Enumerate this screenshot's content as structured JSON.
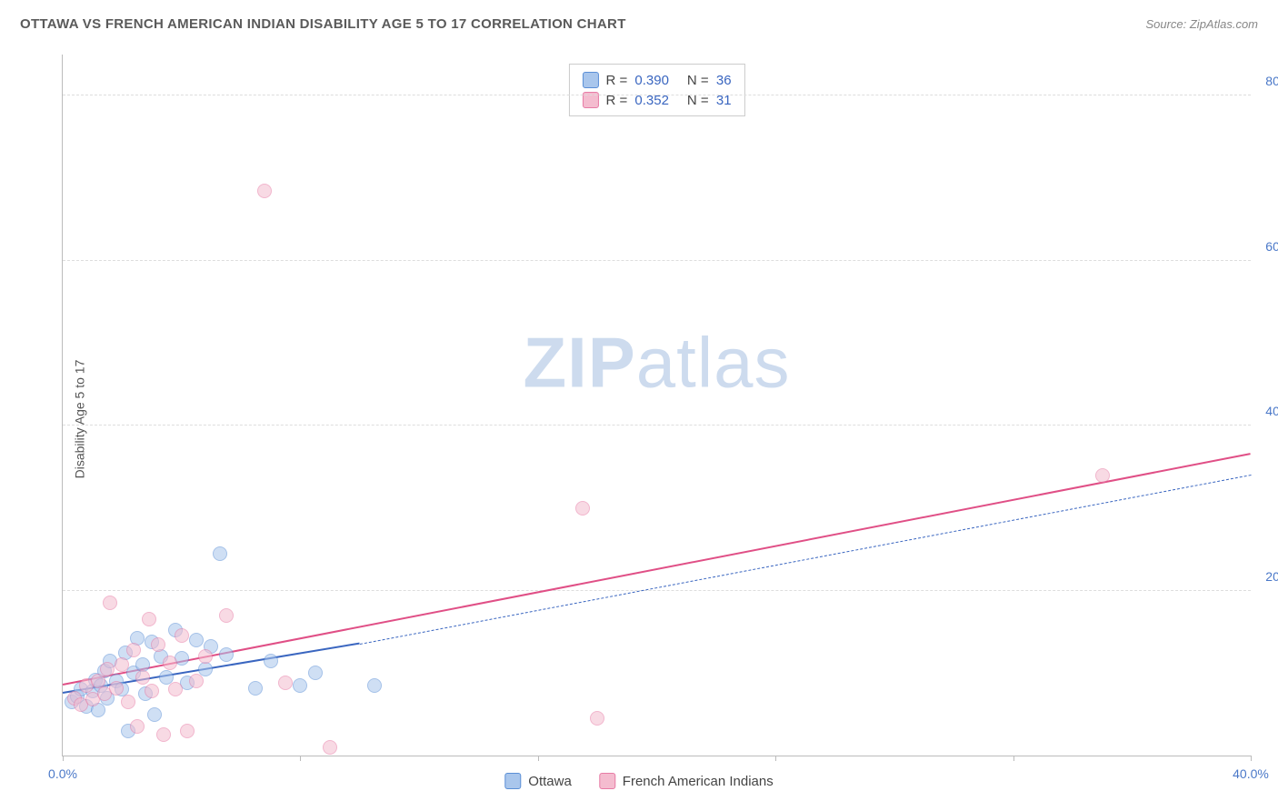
{
  "header": {
    "title": "OTTAWA VS FRENCH AMERICAN INDIAN DISABILITY AGE 5 TO 17 CORRELATION CHART",
    "source": "Source: ZipAtlas.com"
  },
  "chart": {
    "type": "scatter",
    "ylabel": "Disability Age 5 to 17",
    "watermark_a": "ZIP",
    "watermark_b": "atlas",
    "xlim": [
      0,
      40
    ],
    "ylim": [
      0,
      85
    ],
    "ytick_values": [
      20,
      40,
      60,
      80
    ],
    "ytick_labels": [
      "20.0%",
      "40.0%",
      "60.0%",
      "80.0%"
    ],
    "xtick_marks": [
      0,
      8,
      16,
      24,
      32,
      40
    ],
    "xtick_labels": [
      {
        "x": 0,
        "label": "0.0%"
      },
      {
        "x": 40,
        "label": "40.0%"
      }
    ],
    "background_color": "#ffffff",
    "grid_color": "#dddddd",
    "axis_color": "#bbbbbb",
    "tick_label_color": "#4a78c8",
    "point_radius": 8,
    "point_border_width": 1.5,
    "series": [
      {
        "name": "Ottawa",
        "fill": "#a9c6ec",
        "stroke": "#5b8fd6",
        "fill_opacity": 0.55,
        "R": "0.390",
        "N": "36",
        "trend": {
          "x1": 0,
          "y1": 7.5,
          "x2": 10,
          "y2": 13.5,
          "solid": true,
          "dash_ext_x2": 40,
          "dash_ext_y2": 34,
          "width": 2.2,
          "color": "#3a66c0"
        },
        "points": [
          [
            0.3,
            6.5
          ],
          [
            0.5,
            7.2
          ],
          [
            0.6,
            8.1
          ],
          [
            0.8,
            6.0
          ],
          [
            1.0,
            7.8
          ],
          [
            1.1,
            9.2
          ],
          [
            1.2,
            5.5
          ],
          [
            1.3,
            8.5
          ],
          [
            1.4,
            10.2
          ],
          [
            1.5,
            7.0
          ],
          [
            1.6,
            11.5
          ],
          [
            1.8,
            9.0
          ],
          [
            2.0,
            8.0
          ],
          [
            2.1,
            12.5
          ],
          [
            2.2,
            3.0
          ],
          [
            2.4,
            10.0
          ],
          [
            2.5,
            14.2
          ],
          [
            2.7,
            11.0
          ],
          [
            2.8,
            7.5
          ],
          [
            3.0,
            13.8
          ],
          [
            3.1,
            5.0
          ],
          [
            3.3,
            12.0
          ],
          [
            3.5,
            9.5
          ],
          [
            3.8,
            15.2
          ],
          [
            4.0,
            11.8
          ],
          [
            4.2,
            8.8
          ],
          [
            4.5,
            14.0
          ],
          [
            4.8,
            10.5
          ],
          [
            5.0,
            13.2
          ],
          [
            5.3,
            24.5
          ],
          [
            5.5,
            12.2
          ],
          [
            6.5,
            8.2
          ],
          [
            7.0,
            11.5
          ],
          [
            8.0,
            8.5
          ],
          [
            8.5,
            10.0
          ],
          [
            10.5,
            8.5
          ]
        ]
      },
      {
        "name": "French American Indians",
        "fill": "#f4bccf",
        "stroke": "#e77ba5",
        "fill_opacity": 0.55,
        "R": "0.352",
        "N": "31",
        "trend": {
          "x1": 0,
          "y1": 8.5,
          "x2": 40,
          "y2": 36.5,
          "solid": true,
          "width": 2.2,
          "color": "#e04f86"
        },
        "points": [
          [
            0.4,
            7.0
          ],
          [
            0.6,
            6.2
          ],
          [
            0.8,
            8.5
          ],
          [
            1.0,
            6.8
          ],
          [
            1.2,
            9.0
          ],
          [
            1.4,
            7.5
          ],
          [
            1.5,
            10.5
          ],
          [
            1.6,
            18.5
          ],
          [
            1.8,
            8.2
          ],
          [
            2.0,
            11.0
          ],
          [
            2.2,
            6.5
          ],
          [
            2.4,
            12.8
          ],
          [
            2.5,
            3.5
          ],
          [
            2.7,
            9.5
          ],
          [
            2.9,
            16.5
          ],
          [
            3.0,
            7.8
          ],
          [
            3.2,
            13.5
          ],
          [
            3.4,
            2.5
          ],
          [
            3.6,
            11.2
          ],
          [
            3.8,
            8.0
          ],
          [
            4.0,
            14.5
          ],
          [
            4.2,
            3.0
          ],
          [
            4.5,
            9.0
          ],
          [
            4.8,
            12.0
          ],
          [
            5.5,
            17.0
          ],
          [
            6.8,
            68.5
          ],
          [
            7.5,
            8.8
          ],
          [
            9.0,
            1.0
          ],
          [
            17.5,
            30.0
          ],
          [
            18.0,
            4.5
          ],
          [
            35.0,
            34.0
          ]
        ]
      }
    ],
    "legend_bottom": [
      {
        "swatch_fill": "#a9c6ec",
        "swatch_stroke": "#5b8fd6",
        "label": "Ottawa"
      },
      {
        "swatch_fill": "#f4bccf",
        "swatch_stroke": "#e77ba5",
        "label": "French American Indians"
      }
    ]
  }
}
